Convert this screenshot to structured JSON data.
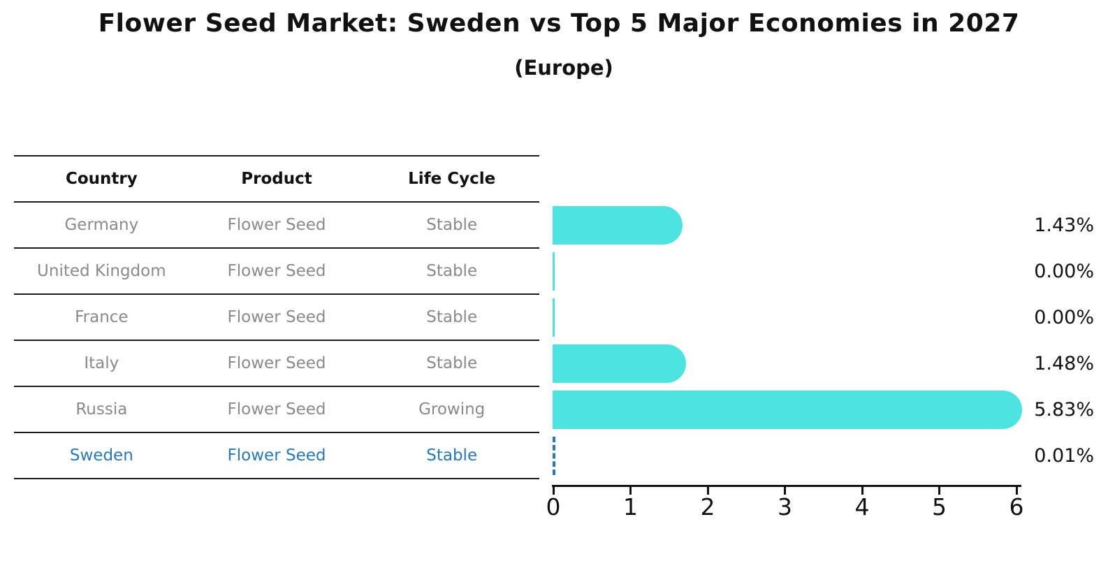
{
  "title": "Flower Seed Market: Sweden vs Top 5 Major Economies in 2027",
  "subtitle": "(Europe)",
  "table": {
    "headers": [
      "Country",
      "Product",
      "Life Cycle"
    ],
    "rows": [
      {
        "country": "Germany",
        "product": "Flower Seed",
        "life_cycle": "Stable"
      },
      {
        "country": "United Kingdom",
        "product": "Flower Seed",
        "life_cycle": "Stable"
      },
      {
        "country": "France",
        "product": "Flower Seed",
        "life_cycle": "Stable"
      },
      {
        "country": "Italy",
        "product": "Flower Seed",
        "life_cycle": "Stable"
      },
      {
        "country": "Russia",
        "product": "Flower Seed",
        "life_cycle": "Growing"
      },
      {
        "country": "Sweden",
        "product": "Flower Seed",
        "life_cycle": "Stable"
      }
    ],
    "highlight_row": "Sweden"
  },
  "chart_data": {
    "type": "bar",
    "orientation": "horizontal",
    "title": "Flower Seed Market: Sweden vs Top 5 Major Economies in 2027",
    "subtitle": "(Europe)",
    "categories": [
      "Germany",
      "United Kingdom",
      "France",
      "Italy",
      "Russia",
      "Sweden"
    ],
    "values": [
      1.43,
      0.0,
      0.0,
      1.48,
      5.83,
      0.01
    ],
    "value_labels": [
      "1.43%",
      "0.00%",
      "0.00%",
      "1.48%",
      "5.83%",
      "0.01%"
    ],
    "x_ticks": [
      "0",
      "1",
      "2",
      "3",
      "4",
      "5",
      "6"
    ],
    "xlim": [
      0,
      6
    ],
    "grid": false,
    "legend": false,
    "highlight_index": 5,
    "bar_color": "#4DE3E0",
    "highlight_color": "#2878BE"
  },
  "colors": {
    "background": "#FFFFFF",
    "bar": "#4DE3E0",
    "highlight_blue": "#2878BE",
    "muted_text": "#8A8A8A",
    "text": "#111111"
  }
}
